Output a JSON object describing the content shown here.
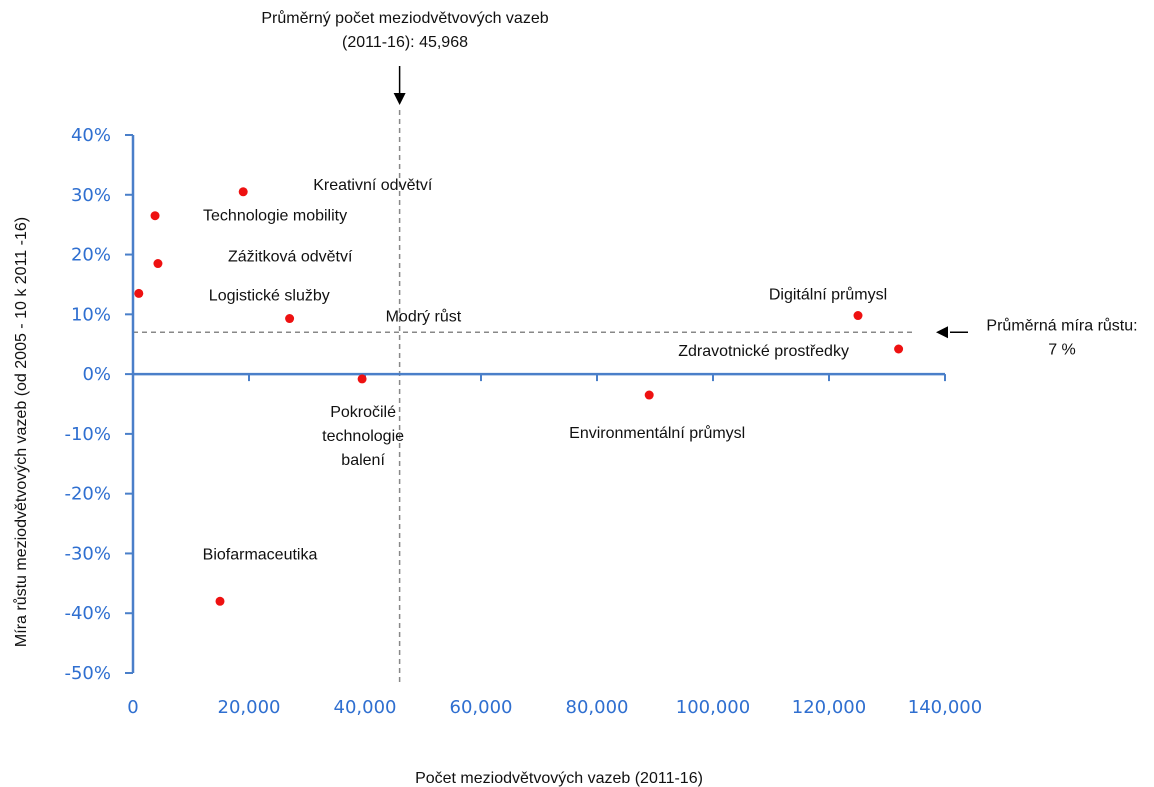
{
  "colors": {
    "axis": "#4a7fc9",
    "tick_text": "#2f6fd0",
    "point": "#ee1111",
    "guide": "#888888",
    "text": "#111111"
  },
  "chart_data": {
    "type": "scatter",
    "xlabel": "Počet meziodvětvových vazeb (2011-16)",
    "ylabel": "Míra růstu meziodvětvových vazeb (od 2005 - 10 k 2011 -16)",
    "xlim": [
      0,
      140000
    ],
    "ylim": [
      -50,
      40
    ],
    "x_ticks": [
      0,
      20000,
      40000,
      60000,
      80000,
      100000,
      120000,
      140000
    ],
    "x_tick_labels": [
      "0",
      "20,000",
      "40,000",
      "60,000",
      "80,000",
      "100,000",
      "120,000",
      "140,000"
    ],
    "y_ticks": [
      40,
      30,
      20,
      10,
      0,
      -10,
      -20,
      -30,
      -40,
      -50
    ],
    "y_tick_labels": [
      "40%",
      "30%",
      "20%",
      "10%",
      "0%",
      "-10%",
      "-20%",
      "-30%",
      "-40%",
      "-50%"
    ],
    "grid": false,
    "points": [
      {
        "label": "Kreativní odvětví",
        "x": 19000,
        "y": 30.5
      },
      {
        "label": "Technologie mobility",
        "x": 3800,
        "y": 26.5
      },
      {
        "label": "Zážitková odvětví",
        "x": 4300,
        "y": 18.5
      },
      {
        "label": "Logistické služby",
        "x": 1000,
        "y": 13.5
      },
      {
        "label": "Modrý růst",
        "x": 27000,
        "y": 9.3
      },
      {
        "label": "Pokročilé technologie balení",
        "x": 39500,
        "y": -0.8
      },
      {
        "label": "Environmentální průmysl",
        "x": 89000,
        "y": -3.5
      },
      {
        "label": "Digitální průmysl",
        "x": 125000,
        "y": 9.8
      },
      {
        "label": "Zdravotnické prostředky",
        "x": 132000,
        "y": 4.2
      },
      {
        "label": "Biofarmaceutika",
        "x": 15000,
        "y": -38
      }
    ],
    "reference_lines": [
      {
        "orientation": "vertical",
        "value": 45968,
        "label_lines": [
          "Průměrný počet meziodvětvových vazeb",
          "(2011-16): 45,968"
        ]
      },
      {
        "orientation": "horizontal",
        "value": 7,
        "label_lines": [
          "Průměrná míra růstu:",
          "7 %"
        ]
      }
    ]
  }
}
